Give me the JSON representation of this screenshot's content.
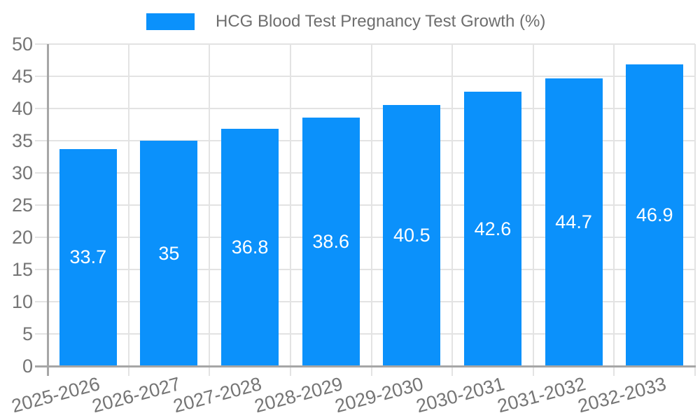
{
  "chart_data": {
    "type": "bar",
    "title": "HCG Blood Test Pregnancy Test Growth (%)",
    "legend": {
      "label": "HCG Blood Test Pregnancy Test Growth (%)",
      "position": "top-center"
    },
    "categories": [
      "2025-2026",
      "2026-2027",
      "2027-2028",
      "2028-2029",
      "2029-2030",
      "2030-2031",
      "2031-2032",
      "2032-2033"
    ],
    "series": [
      {
        "name": "HCG Blood Test Pregnancy Test Growth (%)",
        "values": [
          33.7,
          35,
          36.8,
          38.6,
          40.5,
          42.6,
          44.7,
          46.9
        ]
      }
    ],
    "bar_value_labels": [
      "33.7",
      "35",
      "36.8",
      "38.6",
      "40.5",
      "42.6",
      "44.7",
      "46.9"
    ],
    "xlabel": "",
    "ylabel": "",
    "ylim": [
      0,
      50
    ],
    "ytick_step": 5,
    "yticks": [
      "0",
      "5",
      "10",
      "15",
      "20",
      "25",
      "30",
      "35",
      "40",
      "45",
      "50"
    ],
    "grid": true,
    "x_tick_rotation_deg": -15,
    "legend_position": "top",
    "colors": {
      "bar": "#0b91fb",
      "bar_label_text": "#ffffff",
      "grid": "#e3e3e3",
      "axis": "#a6a6a6",
      "tick_text": "#757575",
      "legend_text": "#6e6e6e",
      "background": "#ffffff"
    }
  }
}
